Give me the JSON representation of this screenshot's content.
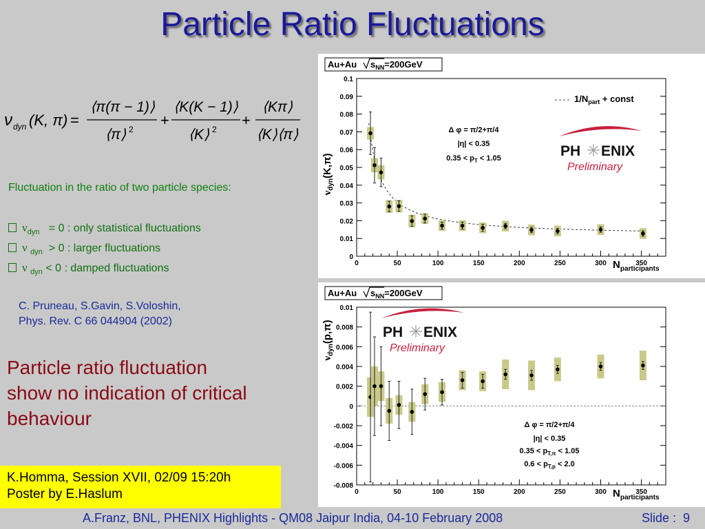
{
  "slide": {
    "title": "Particle Ratio Fluctuations",
    "green_heading": "Fluctuation in the ratio of two particle species:",
    "bullets": [
      {
        "text": "= 0 : only statistical fluctuations"
      },
      {
        "text": "> 0 : larger fluctuations"
      },
      {
        "text": "< 0 : damped fluctuations"
      }
    ],
    "nu_symbol": "ν",
    "nu_sub": "dyn",
    "reference": [
      "C. Pruneau, S.Gavin, S.Voloshin,",
      "Phys. Rev. C 66 044904 (2002)"
    ],
    "conclusion": [
      "Particle ratio fluctuation",
      "show no indication of critical",
      "behaviour"
    ],
    "session": [
      "K.Homma, Session XVII, 02/09 15:20h",
      "Poster by E.Haslum"
    ],
    "footer": "A.Franz, BNL, PHENIX Highlights - QM08 Jaipur India, 04-10 February 2008",
    "slide_label": "Slide :",
    "slide_number": "9"
  },
  "formula": {
    "lhs_nu": "ν",
    "lhs_sub": "dyn",
    "lhs_args": "(K, π)",
    "eq": "=",
    "t1_num": "⟨π(π − 1)⟩",
    "t1_den": "⟨π⟩",
    "t1_pow": "2",
    "plus": "+",
    "t2_num": "⟨K(K − 1)⟩",
    "t2_den": "⟨K⟩",
    "t2_pow": "2",
    "t3_num": "⟨Kπ⟩",
    "t3_den": "⟨K⟩⟨π⟩"
  },
  "chart_data": [
    {
      "type": "scatter",
      "system_label": "Au+Au",
      "sqrt_s": "s",
      "sqrt_sub": "NN",
      "energy": "=200GeV",
      "ylabel_nu": "ν",
      "ylabel_sub": "dyn",
      "ylabel_args": "(K,π)",
      "xlabel": "N",
      "xlabel_sub": "participants",
      "xlim": [
        0,
        380
      ],
      "ylim": [
        0,
        0.1
      ],
      "xticks": [
        0,
        50,
        100,
        150,
        200,
        250,
        300,
        350
      ],
      "yticks": [
        0,
        0.01,
        0.02,
        0.03,
        0.04,
        0.05,
        0.06,
        0.07,
        0.08,
        0.09,
        0.1
      ],
      "legend": {
        "text": "1/N",
        "sub": "part",
        "rest": " + const",
        "style": "dashed",
        "placement": "top-right"
      },
      "cuts": [
        "Δ φ = π/2+π/4",
        "|η| < 0.35",
        "0.35 < p",
        "T",
        " < 1.05"
      ],
      "logo": {
        "text_left": "PH",
        "text_right": "ENIX",
        "sub": "Preliminary"
      },
      "series": [
        {
          "x": [
            17,
            22,
            30,
            40,
            52,
            68,
            84,
            105,
            130,
            155,
            183,
            215,
            247,
            300,
            352
          ],
          "y": [
            0.0692,
            0.0512,
            0.0472,
            0.028,
            0.0282,
            0.0198,
            0.0212,
            0.0172,
            0.0172,
            0.016,
            0.017,
            0.0148,
            0.0142,
            0.015,
            0.0128
          ],
          "stat": [
            0.012,
            0.01,
            0.008,
            0.003,
            0.003,
            0.003,
            0.0025,
            0.002,
            0.002,
            0.002,
            0.0015,
            0.0015,
            0.0015,
            0.0015,
            0.0015
          ],
          "sys": [
            0.0035,
            0.004,
            0.004,
            0.0035,
            0.0035,
            0.0035,
            0.003,
            0.003,
            0.003,
            0.003,
            0.003,
            0.003,
            0.003,
            0.003,
            0.003
          ]
        }
      ],
      "fit": {
        "a": 0.95,
        "c": 0.0115
      }
    },
    {
      "type": "scatter",
      "system_label": "Au+Au",
      "sqrt_s": "s",
      "sqrt_sub": "NN",
      "energy": "=200GeV",
      "ylabel_nu": "ν",
      "ylabel_sub": "dyn",
      "ylabel_args": "(p,π)",
      "xlabel": "N",
      "xlabel_sub": "participants",
      "xlim": [
        0,
        380
      ],
      "ylim": [
        -0.008,
        0.01
      ],
      "xticks": [
        0,
        50,
        100,
        150,
        200,
        250,
        300,
        350
      ],
      "yticks": [
        -0.008,
        -0.006,
        -0.004,
        -0.002,
        0,
        0.002,
        0.004,
        0.006,
        0.008,
        0.01
      ],
      "ytick_labels": [
        "-0.008",
        "-0.006",
        "-0.004",
        "-0.002",
        "0",
        "0.002",
        "0.004",
        "0.006",
        "0.008",
        "0.01"
      ],
      "cuts": [
        "Δ φ = π/2+π/4",
        "|η| < 0.35",
        "0.35 < p",
        "T,π",
        " < 1.05",
        "0.6 < p",
        "T,p",
        " < 2.0"
      ],
      "logo": {
        "text_left": "PH",
        "text_right": "ENIX",
        "sub": "Preliminary"
      },
      "series": [
        {
          "x": [
            17,
            22,
            30,
            40,
            52,
            68,
            84,
            105,
            130,
            155,
            183,
            215,
            247,
            300,
            352
          ],
          "y": [
            0.0009,
            0.002,
            0.002,
            -0.0005,
            0.0001,
            -0.0006,
            0.0012,
            0.0014,
            0.0026,
            0.0025,
            0.0032,
            0.0031,
            0.0037,
            0.004,
            0.0041
          ],
          "stat": [
            0.0086,
            0.005,
            0.004,
            0.003,
            0.0024,
            0.0023,
            0.0016,
            0.0013,
            0.0008,
            0.0007,
            0.0005,
            0.0005,
            0.0004,
            0.0004,
            0.0004
          ],
          "sys": [
            0.002,
            0.002,
            0.0015,
            0.0013,
            0.001,
            0.001,
            0.001,
            0.001,
            0.001,
            0.001,
            0.0015,
            0.0015,
            0.0012,
            0.0012,
            0.0015
          ]
        }
      ]
    }
  ]
}
